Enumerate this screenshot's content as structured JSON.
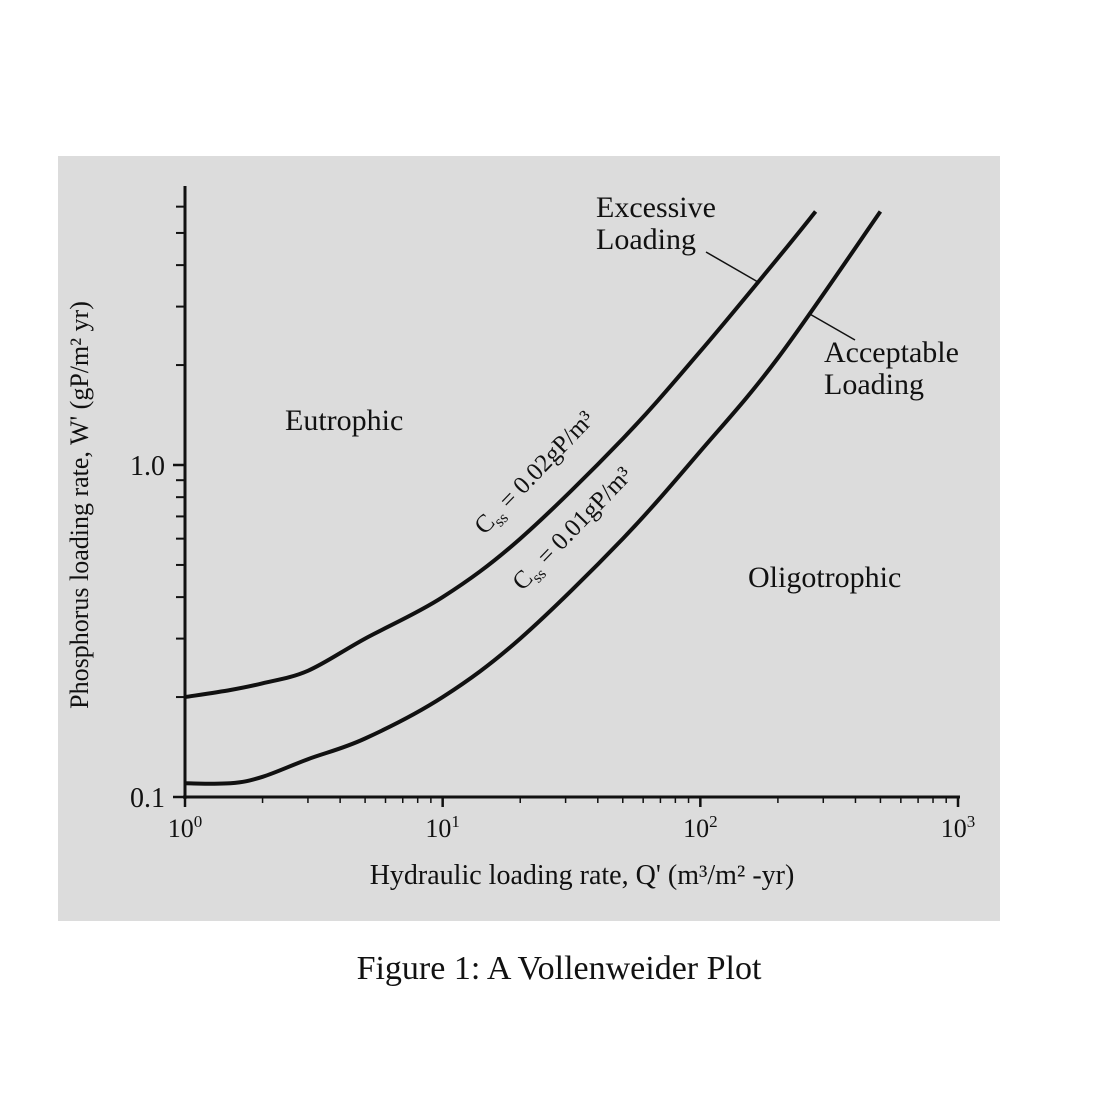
{
  "caption": "Figure 1: A Vollenweider Plot",
  "chart_data": {
    "type": "line",
    "title": "",
    "xscale": "log",
    "yscale": "log",
    "xlim": [
      1,
      1000
    ],
    "ylim": [
      0.1,
      7
    ],
    "xlabel": "Hydraulic  loading rate, Q' (m³/m² -yr)",
    "ylabel": "Phosphorus loading rate, W' (gP/m² yr)",
    "x_ticks": [
      {
        "value": 1,
        "base": "10",
        "exp": "0"
      },
      {
        "value": 10,
        "base": "10",
        "exp": "1"
      },
      {
        "value": 100,
        "base": "10",
        "exp": "2"
      },
      {
        "value": 1000,
        "base": "10",
        "exp": "3"
      }
    ],
    "y_ticks": [
      {
        "value": 0.1,
        "label": "0.1"
      },
      {
        "value": 1.0,
        "label": "1.0"
      }
    ],
    "y_minor_ticks": [
      0.2,
      0.3,
      0.4,
      0.5,
      0.6,
      0.7,
      0.8,
      0.9,
      2,
      3,
      4,
      5,
      6,
      7
    ],
    "x_minor_ticks": [
      2,
      3,
      4,
      5,
      6,
      7,
      8,
      9,
      20,
      30,
      40,
      50,
      60,
      70,
      80,
      90,
      200,
      300,
      400,
      500,
      600,
      700,
      800,
      900
    ],
    "series": [
      {
        "name": "C_ss = 0.02gP/m³",
        "sub": "ss",
        "letter": "C",
        "rest": " = 0.02gP/m³",
        "x": [
          1,
          1.5,
          2,
          3,
          5,
          10,
          20,
          50,
          100,
          200,
          280
        ],
        "y": [
          0.2,
          0.21,
          0.22,
          0.24,
          0.3,
          0.4,
          0.6,
          1.2,
          2.2,
          4.2,
          5.8
        ]
      },
      {
        "name": "C_ss = 0.01gP/m³",
        "sub": "ss",
        "letter": "C",
        "rest": " = 0.01gP/m³",
        "x": [
          1,
          1.5,
          2,
          3,
          5,
          10,
          20,
          50,
          100,
          200,
          500
        ],
        "y": [
          0.11,
          0.11,
          0.115,
          0.13,
          0.15,
          0.2,
          0.3,
          0.6,
          1.1,
          2.1,
          5.8
        ]
      }
    ],
    "annotations": [
      {
        "id": "excessive",
        "lines": [
          "Excessive",
          "Loading"
        ]
      },
      {
        "id": "acceptable",
        "lines": [
          "Acceptable",
          "Loading"
        ]
      },
      {
        "id": "eutrophic",
        "lines": [
          "Eutrophic"
        ]
      },
      {
        "id": "oligotrophic",
        "lines": [
          "Oligotrophic"
        ]
      }
    ],
    "grid": false,
    "legend": "none"
  }
}
